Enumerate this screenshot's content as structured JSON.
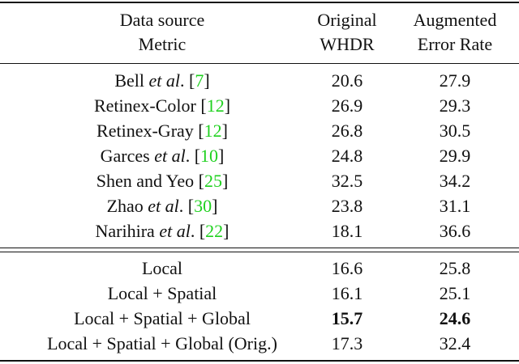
{
  "table": {
    "header": [
      [
        "Data source",
        "Metric"
      ],
      [
        "Original",
        "WHDR"
      ],
      [
        "Augmented",
        "Error Rate"
      ]
    ],
    "groups": [
      [
        {
          "method": [
            {
              "text": "Bell "
            },
            {
              "text": "et al",
              "italic": true
            },
            {
              "text": ". ["
            },
            {
              "text": "7",
              "color": "#1fd11f"
            },
            {
              "text": "]"
            }
          ],
          "values": [
            20.6,
            27.9
          ]
        },
        {
          "method": [
            {
              "text": "Retinex-Color ["
            },
            {
              "text": "12",
              "color": "#1fd11f"
            },
            {
              "text": "]"
            }
          ],
          "values": [
            26.9,
            29.3
          ]
        },
        {
          "method": [
            {
              "text": "Retinex-Gray ["
            },
            {
              "text": "12",
              "color": "#1fd11f"
            },
            {
              "text": "]"
            }
          ],
          "values": [
            26.8,
            30.5
          ]
        },
        {
          "method": [
            {
              "text": "Garces "
            },
            {
              "text": "et al",
              "italic": true
            },
            {
              "text": ". ["
            },
            {
              "text": "10",
              "color": "#1fd11f"
            },
            {
              "text": "]"
            }
          ],
          "values": [
            24.8,
            29.9
          ]
        },
        {
          "method": [
            {
              "text": "Shen and Yeo ["
            },
            {
              "text": "25",
              "color": "#1fd11f"
            },
            {
              "text": "]"
            }
          ],
          "values": [
            32.5,
            34.2
          ]
        },
        {
          "method": [
            {
              "text": "Zhao "
            },
            {
              "text": "et al",
              "italic": true
            },
            {
              "text": ". ["
            },
            {
              "text": "30",
              "color": "#1fd11f"
            },
            {
              "text": "]"
            }
          ],
          "values": [
            23.8,
            31.1
          ]
        },
        {
          "method": [
            {
              "text": "Narihira "
            },
            {
              "text": "et al",
              "italic": true
            },
            {
              "text": ". ["
            },
            {
              "text": "22",
              "color": "#1fd11f"
            },
            {
              "text": "]"
            }
          ],
          "values": [
            18.1,
            36.6
          ]
        }
      ],
      [
        {
          "method": [
            {
              "text": "Local"
            }
          ],
          "values": [
            16.6,
            25.8
          ]
        },
        {
          "method": [
            {
              "text": "Local + Spatial"
            }
          ],
          "values": [
            16.1,
            25.1
          ]
        },
        {
          "method": [
            {
              "text": "Local + Spatial + Global"
            }
          ],
          "values": [
            15.7,
            24.6
          ],
          "bold": true
        },
        {
          "method": [
            {
              "text": "Local + Spatial + Global (Orig.)"
            }
          ],
          "values": [
            17.3,
            32.4
          ]
        }
      ]
    ]
  }
}
